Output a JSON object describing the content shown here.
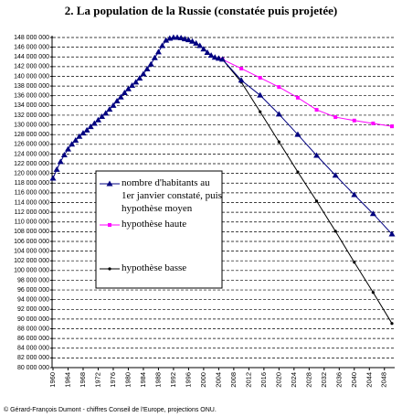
{
  "chart_data": {
    "type": "line",
    "title": "2. La population de la Russie (constatée puis projetée)",
    "footer": "© Gérard-François Dumont - chiffres Conseil de l'Europe, projections ONU.",
    "x": [
      1960,
      1961,
      1962,
      1963,
      1964,
      1965,
      1966,
      1967,
      1968,
      1969,
      1970,
      1971,
      1972,
      1973,
      1974,
      1975,
      1976,
      1977,
      1978,
      1979,
      1980,
      1981,
      1982,
      1983,
      1984,
      1985,
      1986,
      1987,
      1988,
      1989,
      1990,
      1991,
      1992,
      1993,
      1994,
      1995,
      1996,
      1997,
      1998,
      1999,
      2000,
      2001,
      2002,
      2003,
      2004,
      2005,
      2010,
      2015,
      2020,
      2025,
      2030,
      2035,
      2040,
      2045,
      2050
    ],
    "series": [
      {
        "name": "nombre d'habitants au 1er janvier constaté, puis hypothèse moyen",
        "color": "#000080",
        "marker": "triangle",
        "values": [
          119000000,
          120800000,
          122400000,
          123800000,
          125000000,
          126000000,
          126800000,
          127600000,
          128300000,
          128900000,
          129600000,
          130300000,
          131000000,
          131700000,
          132400000,
          133200000,
          134000000,
          134900000,
          135700000,
          136600000,
          137400000,
          138100000,
          138800000,
          139600000,
          140500000,
          141500000,
          142500000,
          143800000,
          145000000,
          146300000,
          147400000,
          147800000,
          148000000,
          148000000,
          147900000,
          147700000,
          147500000,
          147200000,
          146800000,
          146300000,
          145600000,
          144900000,
          144300000,
          143900000,
          143700000,
          143500000,
          139200000,
          136100000,
          132200000,
          128000000,
          123700000,
          119600000,
          115600000,
          111700000,
          107500000
        ]
      },
      {
        "name": "hypothèse haute",
        "color": "#ff00ff",
        "marker": "square",
        "values": [
          null,
          null,
          null,
          null,
          null,
          null,
          null,
          null,
          null,
          null,
          null,
          null,
          null,
          null,
          null,
          null,
          null,
          null,
          null,
          null,
          null,
          null,
          null,
          null,
          null,
          null,
          null,
          null,
          null,
          null,
          null,
          null,
          null,
          null,
          null,
          null,
          null,
          null,
          null,
          null,
          null,
          null,
          null,
          null,
          null,
          143500000,
          141600000,
          139700000,
          137800000,
          135600000,
          133100000,
          131600000,
          130900000,
          130300000,
          129700000
        ]
      },
      {
        "name": "hypothèse basse",
        "color": "#000000",
        "marker": "dot",
        "values": [
          null,
          null,
          null,
          null,
          null,
          null,
          null,
          null,
          null,
          null,
          null,
          null,
          null,
          null,
          null,
          null,
          null,
          null,
          null,
          null,
          null,
          null,
          null,
          null,
          null,
          null,
          null,
          null,
          null,
          null,
          null,
          null,
          null,
          null,
          null,
          null,
          null,
          null,
          null,
          null,
          null,
          null,
          null,
          null,
          null,
          143500000,
          138800000,
          132700000,
          126500000,
          120300000,
          114300000,
          108100000,
          101700000,
          95500000,
          89100000
        ]
      }
    ],
    "xlim": [
      1960,
      2050
    ],
    "xticks": [
      1960,
      1964,
      1968,
      1972,
      1976,
      1980,
      1984,
      1988,
      1992,
      1996,
      2000,
      2004,
      2008,
      2012,
      2016,
      2020,
      2024,
      2028,
      2032,
      2036,
      2040,
      2044,
      2048
    ],
    "ylim": [
      80000000,
      148000000
    ],
    "yticks": [
      {
        "value": 80000000,
        "label": "80 000 000"
      },
      {
        "value": 82000000,
        "label": "82 000 000"
      },
      {
        "value": 84000000,
        "label": "84 000 000"
      },
      {
        "value": 86000000,
        "label": "86 000 000"
      },
      {
        "value": 88000000,
        "label": "88 000 000"
      },
      {
        "value": 90000000,
        "label": "90 000 000"
      },
      {
        "value": 92000000,
        "label": "92 000 000"
      },
      {
        "value": 94000000,
        "label": "94 000 000"
      },
      {
        "value": 96000000,
        "label": "96 000 000"
      },
      {
        "value": 98000000,
        "label": "98 000 000"
      },
      {
        "value": 100000000,
        "label": "100 000 000"
      },
      {
        "value": 102000000,
        "label": "102 000 000"
      },
      {
        "value": 104000000,
        "label": "104 000 000"
      },
      {
        "value": 106000000,
        "label": "106 000 000"
      },
      {
        "value": 108000000,
        "label": "108 000 000"
      },
      {
        "value": 110000000,
        "label": "110 000 000"
      },
      {
        "value": 112000000,
        "label": "112 000 000"
      },
      {
        "value": 114000000,
        "label": "114 000 000"
      },
      {
        "value": 116000000,
        "label": "116 000 000"
      },
      {
        "value": 118000000,
        "label": "118 000 000"
      },
      {
        "value": 120000000,
        "label": "120 000 000"
      },
      {
        "value": 122000000,
        "label": "122 000 000"
      },
      {
        "value": 124000000,
        "label": "124 000 000"
      },
      {
        "value": 126000000,
        "label": "126 000 000"
      },
      {
        "value": 128000000,
        "label": "128 000 000"
      },
      {
        "value": 130000000,
        "label": "130 000 000"
      },
      {
        "value": 132000000,
        "label": "132 000 000"
      },
      {
        "value": 134000000,
        "label": "134 000 000"
      },
      {
        "value": 136000000,
        "label": "136 000 000"
      },
      {
        "value": 138000000,
        "label": "138 000 000"
      },
      {
        "value": 140000000,
        "label": "140 000 000"
      },
      {
        "value": 142000000,
        "label": "142 000 000"
      },
      {
        "value": 144000000,
        "label": "144 000 000"
      },
      {
        "value": 146000000,
        "label": "146 000 000"
      },
      {
        "value": 148000000,
        "label": "148 000 000"
      }
    ],
    "grid": true
  }
}
